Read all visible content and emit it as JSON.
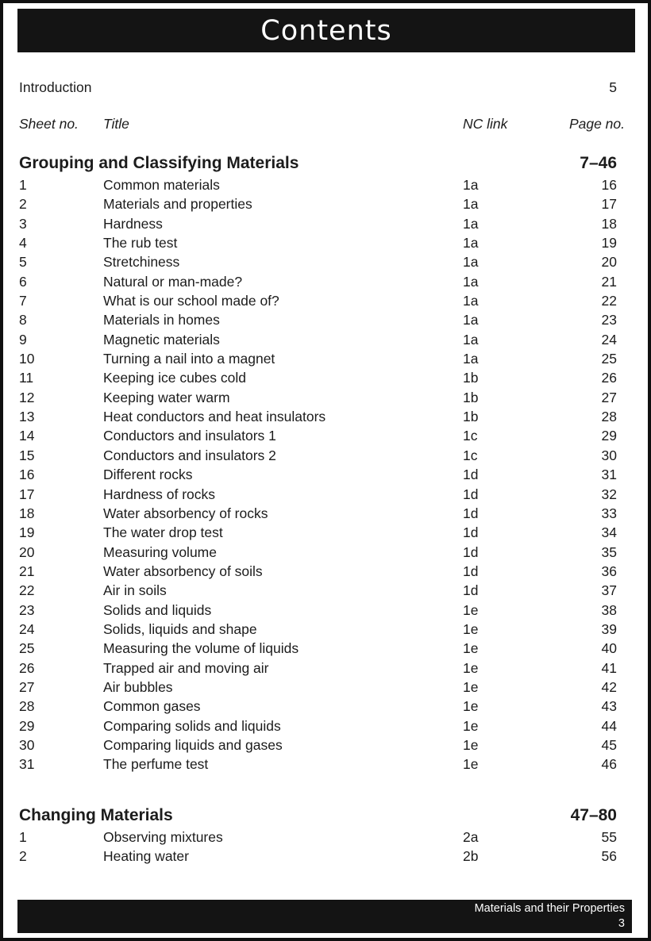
{
  "title": "Contents",
  "introduction": {
    "label": "Introduction",
    "page": "5"
  },
  "columns": {
    "sheet_no": "Sheet no.",
    "title": "Title",
    "nc_link": "NC link",
    "page_no": "Page no."
  },
  "sections": [
    {
      "name": "Grouping and Classifying Materials",
      "pages": "7–46",
      "rows": [
        [
          "1",
          "Common materials",
          "1a",
          "16"
        ],
        [
          "2",
          "Materials and properties",
          "1a",
          "17"
        ],
        [
          "3",
          "Hardness",
          "1a",
          "18"
        ],
        [
          "4",
          "The rub test",
          "1a",
          "19"
        ],
        [
          "5",
          "Stretchiness",
          "1a",
          "20"
        ],
        [
          "6",
          "Natural or man-made?",
          "1a",
          "21"
        ],
        [
          "7",
          "What is our school made of?",
          "1a",
          "22"
        ],
        [
          "8",
          "Materials in homes",
          "1a",
          "23"
        ],
        [
          "9",
          "Magnetic materials",
          "1a",
          "24"
        ],
        [
          "10",
          "Turning a nail into a magnet",
          "1a",
          "25"
        ],
        [
          "11",
          "Keeping ice cubes cold",
          "1b",
          "26"
        ],
        [
          "12",
          "Keeping water warm",
          "1b",
          "27"
        ],
        [
          "13",
          "Heat conductors and heat insulators",
          "1b",
          "28"
        ],
        [
          "14",
          "Conductors and insulators 1",
          "1c",
          "29"
        ],
        [
          "15",
          "Conductors and insulators 2",
          "1c",
          "30"
        ],
        [
          "16",
          "Different rocks",
          "1d",
          "31"
        ],
        [
          "17",
          "Hardness of rocks",
          "1d",
          "32"
        ],
        [
          "18",
          "Water absorbency of rocks",
          "1d",
          "33"
        ],
        [
          "19",
          "The water drop test",
          "1d",
          "34"
        ],
        [
          "20",
          "Measuring volume",
          "1d",
          "35"
        ],
        [
          "21",
          "Water absorbency of soils",
          "1d",
          "36"
        ],
        [
          "22",
          "Air in soils",
          "1d",
          "37"
        ],
        [
          "23",
          "Solids and liquids",
          "1e",
          "38"
        ],
        [
          "24",
          "Solids, liquids and shape",
          "1e",
          "39"
        ],
        [
          "25",
          "Measuring the volume of liquids",
          "1e",
          "40"
        ],
        [
          "26",
          "Trapped air and moving air",
          "1e",
          "41"
        ],
        [
          "27",
          "Air bubbles",
          "1e",
          "42"
        ],
        [
          "28",
          "Common gases",
          "1e",
          "43"
        ],
        [
          "29",
          "Comparing solids and liquids",
          "1e",
          "44"
        ],
        [
          "30",
          "Comparing liquids and gases",
          "1e",
          "45"
        ],
        [
          "31",
          "The perfume test",
          "1e",
          "46"
        ]
      ]
    },
    {
      "name": "Changing Materials",
      "pages": "47–80",
      "rows": [
        [
          "1",
          "Observing mixtures",
          "2a",
          "55"
        ],
        [
          "2",
          "Heating water",
          "2b",
          "56"
        ]
      ]
    }
  ],
  "footer": {
    "series": "Materials and their Properties",
    "page": "3"
  },
  "colors": {
    "banner": "#141414",
    "border": "#101010",
    "text": "#1c1c1c",
    "banner_text": "#ffffff"
  }
}
